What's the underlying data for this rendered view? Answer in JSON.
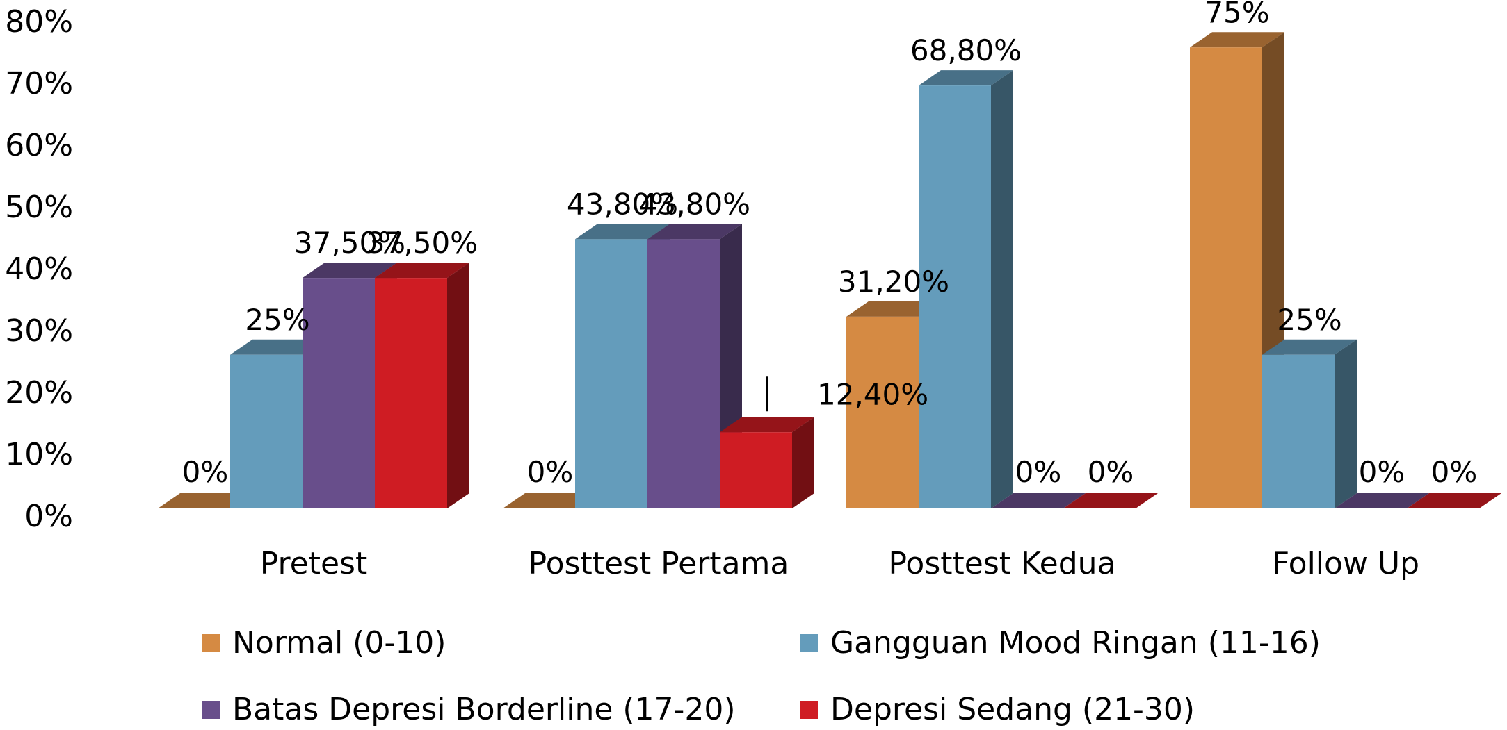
{
  "chart_data": {
    "type": "bar",
    "categories": [
      "Pretest",
      "Posttest Pertama",
      "Posttest Kedua",
      "Follow Up"
    ],
    "series": [
      {
        "name": "Normal (0-10)",
        "color": "#D58A43",
        "values": [
          0,
          0,
          31.2,
          75
        ],
        "labels": [
          "0%",
          "0%",
          "31,20%",
          "75%"
        ]
      },
      {
        "name": "Gangguan Mood Ringan (11-16)",
        "color": "#649CBB",
        "values": [
          25,
          43.8,
          68.8,
          25
        ],
        "labels": [
          "25%",
          "43,80%",
          "68,80%",
          "25%"
        ]
      },
      {
        "name": "Batas Depresi Borderline (17-20)",
        "color": "#684E8B",
        "values": [
          37.5,
          43.8,
          0,
          0
        ],
        "labels": [
          "37,50%",
          "43,80%",
          "0%",
          "0%"
        ]
      },
      {
        "name": "Depresi Sedang (21-30)",
        "color": "#CF1C23",
        "values": [
          37.5,
          12.4,
          0,
          0
        ],
        "labels": [
          "37,50%",
          "12,40%",
          "0%",
          "0%"
        ]
      }
    ],
    "yticks": [
      "0%",
      "10%",
      "20%",
      "30%",
      "40%",
      "50%",
      "60%",
      "70%",
      "80%"
    ],
    "ylim": [
      0,
      80
    ],
    "grid": false,
    "legend_position": "bottom",
    "title": "",
    "xlabel": "",
    "ylabel": ""
  }
}
